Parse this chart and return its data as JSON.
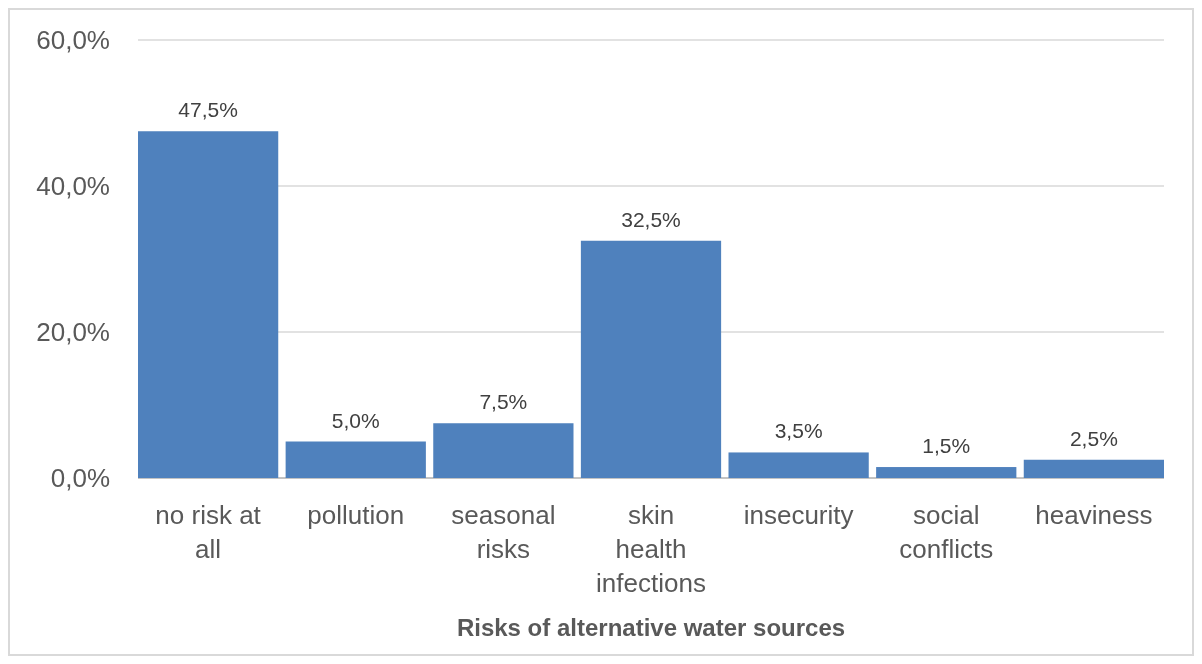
{
  "chart_data": {
    "type": "bar",
    "xlabel": "Risks of alternative water sources",
    "categories": [
      "no risk at all",
      "pollution",
      "seasonal risks",
      "skin health infections",
      "insecurity",
      "social conflicts",
      "heaviness"
    ],
    "values": [
      47.5,
      5.0,
      7.5,
      32.5,
      3.5,
      1.5,
      2.5
    ],
    "value_labels": [
      "47,5%",
      "5,0%",
      "7,5%",
      "32,5%",
      "3,5%",
      "1,5%",
      "2,5%"
    ],
    "color": "#4f81bd",
    "ylim": [
      0,
      60
    ],
    "yticks": [
      {
        "value": 0,
        "label": "0,0%"
      },
      {
        "value": 20,
        "label": "20,0%"
      },
      {
        "value": 40,
        "label": "40,0%"
      },
      {
        "value": 60,
        "label": "60,0%"
      }
    ],
    "grid": "y"
  }
}
